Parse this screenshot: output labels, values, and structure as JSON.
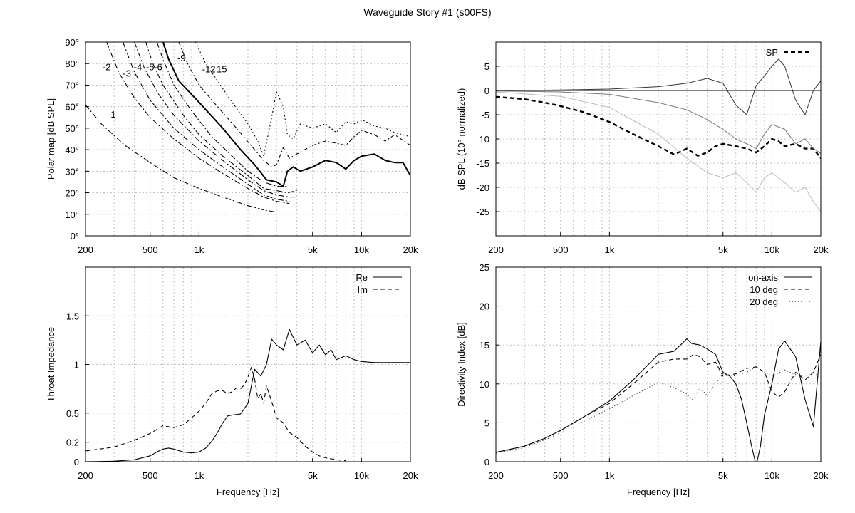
{
  "title": "Waveguide Story #1 (s00FS)",
  "chart_data": [
    {
      "type": "line",
      "title": "",
      "xlabel": "",
      "ylabel": "Polar map [dB SPL]",
      "xscale": "log",
      "xlim": [
        200,
        20000
      ],
      "ylim": [
        0,
        90
      ],
      "xticks": [
        200,
        500,
        1000,
        5000,
        10000,
        20000
      ],
      "xticklabels": [
        "200",
        "500",
        "1k",
        "5k",
        "10k",
        "20k"
      ],
      "yticks": [
        0,
        10,
        20,
        30,
        40,
        50,
        60,
        70,
        80,
        90
      ],
      "yticklabels": [
        "0°",
        "10°",
        "20°",
        "30°",
        "40°",
        "50°",
        "60°",
        "70°",
        "80°",
        "90°"
      ],
      "grid": true,
      "contour_levels": [
        "-1",
        "-2",
        "-3",
        "-4",
        "-5",
        "-6",
        "-9",
        "-12",
        "15"
      ],
      "series": [
        {
          "label": "-1",
          "x": [
            180,
            250,
            350,
            500,
            700,
            1000,
            1400,
            2000,
            2500,
            3000
          ],
          "y": [
            65,
            52,
            42,
            34,
            27,
            22,
            18,
            14,
            12,
            11
          ]
        },
        {
          "label": "-2",
          "x": [
            270,
            320,
            400,
            500,
            700,
            1000,
            1400,
            2000,
            2500,
            3000,
            3600
          ],
          "y": [
            90,
            76,
            64,
            55,
            45,
            36,
            29,
            22,
            18,
            16,
            15
          ]
        },
        {
          "label": "-3",
          "x": [
            340,
            400,
            500,
            700,
            1000,
            1400,
            2000,
            2500,
            3000,
            3600
          ],
          "y": [
            90,
            76,
            63,
            50,
            40,
            32,
            24,
            19,
            17,
            16
          ]
        },
        {
          "label": "-4",
          "x": [
            400,
            460,
            560,
            700,
            1000,
            1400,
            2000,
            2500,
            3000,
            3600,
            4000
          ],
          "y": [
            90,
            78,
            66,
            56,
            44,
            35,
            26,
            21,
            19,
            18,
            18
          ]
        },
        {
          "label": "-5",
          "x": [
            470,
            520,
            600,
            800,
            1000,
            1400,
            2000,
            2500,
            3000,
            3500,
            4000
          ],
          "y": [
            90,
            80,
            70,
            56,
            47,
            37,
            28,
            22,
            21,
            20,
            21
          ]
        },
        {
          "label": "-6",
          "x": [
            550,
            600,
            700,
            900,
            1200,
            1600,
            2000,
            2500,
            3000,
            3500
          ],
          "y": [
            90,
            82,
            70,
            58,
            46,
            37,
            30,
            25,
            23,
            23
          ]
        },
        {
          "label": "0",
          "x": [
            600,
            650,
            750,
            1000,
            1400,
            1800,
            2200,
            2600,
            3000,
            3300,
            3500,
            3800,
            4200,
            5000,
            6000,
            7000,
            8000,
            9000,
            10000,
            12000,
            14000,
            16000,
            18000,
            20000
          ],
          "y": [
            90,
            82,
            72,
            62,
            50,
            40,
            33,
            26,
            25,
            23,
            30,
            32,
            30,
            32,
            35,
            34,
            31,
            35,
            37,
            38,
            35,
            34,
            34,
            28
          ]
        },
        {
          "label": "-9",
          "x": [
            750,
            850,
            1000,
            1300,
            1700,
            2200,
            2500,
            2800,
            3000,
            3300,
            3600,
            4000,
            5000,
            6000,
            7000,
            8000,
            9000,
            10000,
            12000,
            14000,
            16000,
            20000
          ],
          "y": [
            90,
            80,
            70,
            60,
            50,
            40,
            35,
            32,
            33,
            41,
            36,
            38,
            42,
            44,
            43,
            42,
            46,
            49,
            47,
            44,
            47,
            42
          ]
        },
        {
          "label": "-12",
          "x": [
            950,
            1100,
            1300,
            1600,
            2000,
            2300,
            2500,
            2800,
            3000,
            3300,
            3500,
            3800,
            4200,
            5000,
            6000,
            7000,
            8000,
            9000,
            10000,
            12000,
            14000,
            16000,
            20000
          ],
          "y": [
            90,
            80,
            72,
            62,
            52,
            44,
            37,
            55,
            67,
            60,
            47,
            45,
            52,
            50,
            52,
            48,
            53,
            52,
            54,
            51,
            50,
            48,
            46
          ]
        }
      ]
    },
    {
      "type": "line",
      "title": "",
      "xlabel": "",
      "ylabel": "dB SPL (10° normalized)",
      "xscale": "log",
      "xlim": [
        200,
        20000
      ],
      "ylim": [
        -30,
        10
      ],
      "xticks": [
        200,
        500,
        1000,
        5000,
        10000,
        20000
      ],
      "xticklabels": [
        "200",
        "500",
        "1k",
        "5k",
        "10k",
        "20k"
      ],
      "yticks": [
        -25,
        -20,
        -15,
        -10,
        -5,
        0,
        5
      ],
      "yticklabels": [
        "-25",
        "-20",
        "-15",
        "-10",
        "-5",
        "0",
        "5"
      ],
      "grid": true,
      "legend": "top-right",
      "series": [
        {
          "name": "SP",
          "x": [
            200,
            300,
            400,
            500,
            700,
            1000,
            1400,
            2000,
            2500,
            3000,
            3500,
            4000,
            4500,
            5000,
            6000,
            7000,
            8000,
            9000,
            10000,
            11000,
            12000,
            14000,
            16000,
            18000,
            20000
          ],
          "y": [
            -1.3,
            -1.8,
            -2.5,
            -3.2,
            -4.5,
            -6.5,
            -9,
            -11.5,
            -13.2,
            -12,
            -13.5,
            -12.8,
            -11.5,
            -11,
            -11.5,
            -12,
            -12.8,
            -11.5,
            -10,
            -10.5,
            -11.5,
            -11,
            -12,
            -12,
            -14
          ]
        },
        {
          "name": "",
          "x": [
            200,
            500,
            1000,
            2000,
            3000,
            4000,
            5000,
            6000,
            7000,
            8000,
            9000,
            10000,
            11000,
            12000,
            14000,
            16000,
            18000,
            20000
          ],
          "y": [
            0,
            0.1,
            0.3,
            0.8,
            1.5,
            2.5,
            1.5,
            -3,
            -5,
            1,
            3,
            5,
            6.5,
            5,
            -2,
            -5,
            0,
            2
          ]
        },
        {
          "name": "",
          "x": [
            200,
            500,
            1000,
            2000,
            3000,
            4000,
            5000,
            6000,
            7000,
            8000,
            9000,
            10000,
            12000,
            14000,
            16000,
            18000,
            20000
          ],
          "y": [
            -0.1,
            -0.3,
            -0.8,
            -2.5,
            -4,
            -6,
            -8,
            -10,
            -11,
            -12,
            -9,
            -7,
            -8,
            -11,
            -10,
            -12,
            -13
          ]
        },
        {
          "name": "",
          "x": [
            200,
            500,
            1000,
            2000,
            3000,
            4000,
            5000,
            6000,
            7000,
            8000,
            9000,
            10000,
            12000,
            14000,
            16000,
            18000,
            20000
          ],
          "y": [
            -0.3,
            -1.2,
            -3.5,
            -9,
            -14,
            -17,
            -18,
            -17,
            -19,
            -21,
            -18,
            -17,
            -19,
            -21,
            -20,
            -23,
            -25
          ]
        }
      ]
    },
    {
      "type": "line",
      "title": "",
      "xlabel": "Frequency [Hz]",
      "ylabel": "Throat Impedance",
      "xscale": "log",
      "xlim": [
        200,
        20000
      ],
      "ylim": [
        0,
        2
      ],
      "xticks": [
        200,
        500,
        1000,
        5000,
        10000,
        20000
      ],
      "xticklabels": [
        "200",
        "500",
        "1k",
        "5k",
        "10k",
        "20k"
      ],
      "yticks": [
        0,
        0.2,
        0.5,
        1,
        1.5
      ],
      "yticklabels": [
        "0",
        "0.2",
        "0.5",
        "1",
        "1.5"
      ],
      "grid": true,
      "legend": "top-right",
      "series": [
        {
          "name": "Re",
          "x": [
            200,
            300,
            400,
            500,
            550,
            600,
            650,
            700,
            800,
            900,
            1000,
            1100,
            1200,
            1300,
            1400,
            1500,
            1600,
            1800,
            2000,
            2200,
            2400,
            2600,
            2800,
            3000,
            3300,
            3600,
            4000,
            4500,
            5000,
            5500,
            6000,
            6500,
            7000,
            8000,
            9000,
            10000,
            12000,
            14000,
            16000,
            20000
          ],
          "y": [
            0,
            0.005,
            0.02,
            0.06,
            0.1,
            0.13,
            0.14,
            0.13,
            0.1,
            0.09,
            0.1,
            0.14,
            0.21,
            0.3,
            0.4,
            0.47,
            0.48,
            0.49,
            0.6,
            0.95,
            0.88,
            1.0,
            1.26,
            1.2,
            1.15,
            1.36,
            1.2,
            1.25,
            1.12,
            1.2,
            1.1,
            1.15,
            1.05,
            1.09,
            1.05,
            1.03,
            1.02,
            1.02,
            1.02,
            1.02
          ]
        },
        {
          "name": "Im",
          "x": [
            200,
            300,
            400,
            500,
            600,
            700,
            800,
            900,
            1000,
            1100,
            1200,
            1300,
            1400,
            1500,
            1600,
            1700,
            1800,
            1900,
            2000,
            2100,
            2200,
            2300,
            2400,
            2500,
            2600,
            2800,
            3000,
            3300,
            3600,
            4000,
            4500,
            5000,
            5500,
            6000,
            7000,
            8000
          ],
          "y": [
            0.11,
            0.15,
            0.22,
            0.29,
            0.37,
            0.35,
            0.38,
            0.45,
            0.52,
            0.6,
            0.7,
            0.73,
            0.73,
            0.7,
            0.72,
            0.76,
            0.75,
            0.79,
            0.87,
            0.97,
            0.85,
            0.65,
            0.7,
            0.6,
            0.78,
            0.62,
            0.45,
            0.4,
            0.3,
            0.25,
            0.16,
            0.1,
            0.06,
            0.04,
            0.02,
            0.01
          ]
        }
      ]
    },
    {
      "type": "line",
      "title": "",
      "xlabel": "Frequency [Hz]",
      "ylabel": "Directivity Index [dB]",
      "xscale": "log",
      "xlim": [
        200,
        20000
      ],
      "ylim": [
        0,
        25
      ],
      "xticks": [
        200,
        500,
        1000,
        5000,
        10000,
        20000
      ],
      "xticklabels": [
        "200",
        "500",
        "1k",
        "5k",
        "10k",
        "20k"
      ],
      "yticks": [
        0,
        5,
        10,
        15,
        20,
        25
      ],
      "yticklabels": [
        "0",
        "5",
        "10",
        "15",
        "20",
        "25"
      ],
      "grid": true,
      "legend": "top-right",
      "series": [
        {
          "name": "on-axis",
          "x": [
            200,
            300,
            400,
            500,
            700,
            1000,
            1400,
            2000,
            2500,
            3000,
            3200,
            3600,
            4000,
            4500,
            5000,
            5500,
            6000,
            6500,
            7000,
            7500,
            8000,
            8500,
            9000,
            10000,
            11000,
            12000,
            14000,
            16000,
            18000,
            20000
          ],
          "y": [
            1.2,
            2,
            3,
            4,
            5.8,
            7.8,
            10.5,
            13.8,
            14.2,
            15.8,
            15.2,
            15,
            14.5,
            13.8,
            11.5,
            11,
            10,
            8,
            5,
            2,
            -0.5,
            2,
            6,
            10,
            14.5,
            15.5,
            13.5,
            8,
            4.5,
            15.5
          ]
        },
        {
          "name": "10 deg",
          "x": [
            200,
            300,
            400,
            500,
            700,
            1000,
            1400,
            2000,
            2500,
            3000,
            3300,
            3600,
            4000,
            4500,
            5000,
            6000,
            7000,
            8000,
            9000,
            10000,
            11000,
            12000,
            14000,
            16000,
            18000,
            20000
          ],
          "y": [
            1.2,
            2,
            3,
            4,
            5.8,
            7.5,
            10,
            12.8,
            13.2,
            13.2,
            13.8,
            13.5,
            12.5,
            12.8,
            11,
            11.3,
            12,
            12.2,
            11.5,
            9,
            8.3,
            9,
            11.5,
            10.5,
            11.5,
            13.8
          ]
        },
        {
          "name": "20 deg",
          "x": [
            200,
            300,
            400,
            500,
            700,
            1000,
            1400,
            2000,
            2500,
            3000,
            3300,
            3600,
            4000,
            4500,
            5000,
            6000,
            7000,
            8000,
            9000,
            10000,
            12000,
            14000,
            16000,
            18000,
            20000
          ],
          "y": [
            1.1,
            1.8,
            2.8,
            3.7,
            5.2,
            6.8,
            8.5,
            10.2,
            9.5,
            8.7,
            7.8,
            9.5,
            8.5,
            10,
            11.3,
            11,
            11.5,
            12.2,
            11.5,
            11,
            11.8,
            11.2,
            11,
            11.5,
            10.8
          ]
        }
      ]
    }
  ]
}
